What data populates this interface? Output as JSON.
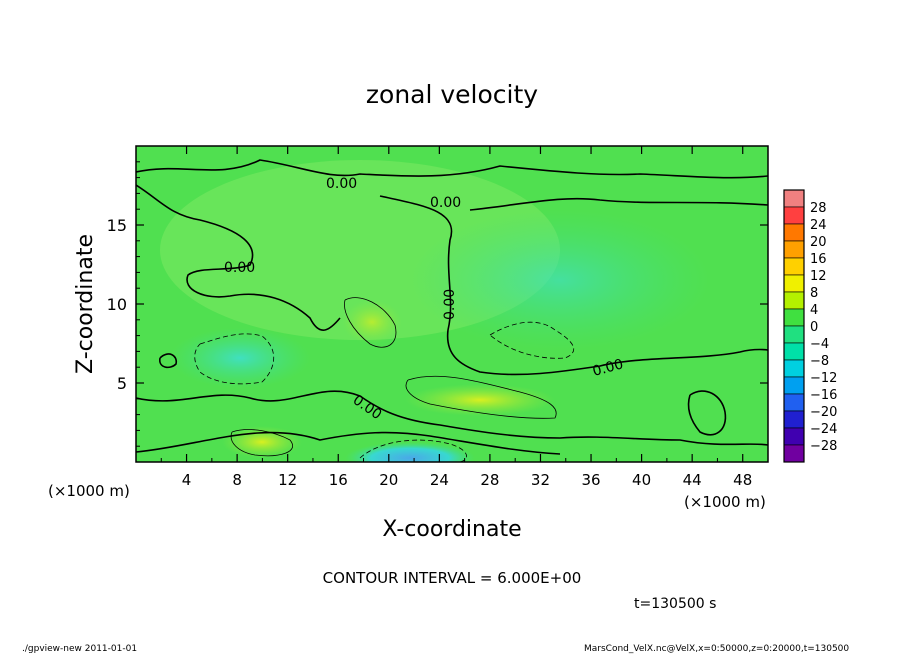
{
  "chart_data": {
    "type": "heatmap",
    "title": "zonal velocity",
    "xlabel": "X-coordinate",
    "ylabel": "Z-coordinate",
    "x_unit": "(×1000 m)",
    "y_unit": "(×1000 m)",
    "xlim": [
      0,
      50
    ],
    "ylim": [
      0,
      20
    ],
    "x_ticks": [
      "4",
      "8",
      "12",
      "16",
      "20",
      "24",
      "28",
      "32",
      "36",
      "40",
      "44",
      "48"
    ],
    "y_ticks": [
      "5",
      "10",
      "15"
    ],
    "contour_interval": "CONTOUR INTERVAL = 6.000E+00",
    "contour_labels": [
      "0.00",
      "0.00",
      "0.00",
      "0.00",
      "0.00",
      "0.00"
    ],
    "time_label": "t=130500 s",
    "colorbar": {
      "labels": [
        "28",
        "24",
        "20",
        "16",
        "12",
        "8",
        "4",
        "0",
        "−4",
        "−8",
        "−12",
        "−16",
        "−20",
        "−24",
        "−28"
      ],
      "colors": [
        "#f08080",
        "#ff4040",
        "#ff7800",
        "#ffa000",
        "#ffd000",
        "#f0f000",
        "#b4f000",
        "#40e040",
        "#20e080",
        "#00e0a8",
        "#00d0e0",
        "#00a0f0",
        "#2060f0",
        "#2020d0",
        "#4000b0",
        "#7000a0"
      ]
    }
  },
  "footer": {
    "left": "./gpview-new   2011-01-01",
    "right": "MarsCond_VelX.nc@VelX,x=0:50000,z=0:20000,t=130500"
  }
}
